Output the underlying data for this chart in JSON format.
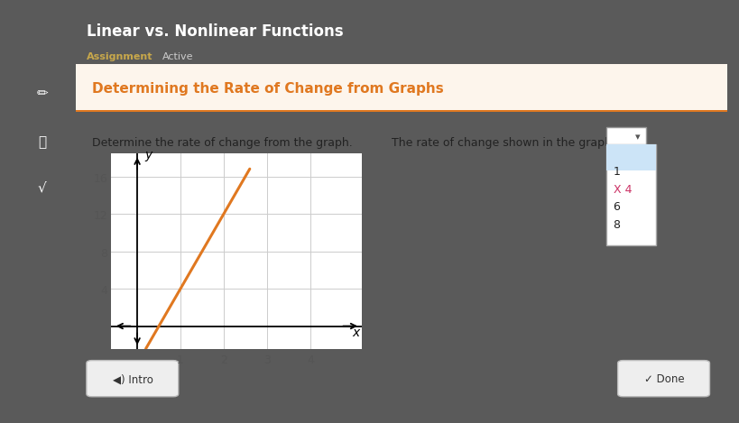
{
  "title": "Linear vs. Nonlinear Functions",
  "subtitle_left": "Assignment",
  "subtitle_right": "Active",
  "header_bg": "#3d3d3d",
  "header_title_color": "#ffffff",
  "header_assignment_color": "#c8a84b",
  "header_active_color": "#cccccc",
  "content_bg": "#f0f0f0",
  "inner_content_bg": "#ffffff",
  "section_title": "Determining the Rate of Change from Graphs",
  "section_title_color": "#e07820",
  "graph_instruction": "Determine the rate of change from the graph.",
  "graph_xlim": [
    -0.6,
    5.2
  ],
  "graph_ylim": [
    -2.5,
    18.5
  ],
  "graph_xticks": [
    1,
    2,
    3,
    4
  ],
  "graph_yticks": [
    4,
    8,
    12,
    16
  ],
  "line_color": "#e07820",
  "line_width": 2.2,
  "line_slope": 8,
  "line_intercept": -4,
  "question_text": "The rate of change shown in the graph is",
  "dropdown_options": [
    "1",
    "X 4",
    "6",
    "8"
  ],
  "dropdown_selected": "1",
  "dropdown_selected_bg": "#cce4f7",
  "dropdown_x4_color": "#cc3366",
  "intro_button": "Intro",
  "done_button": "Done",
  "outer_bg": "#5a5a5a",
  "left_panel_bg": "#4a4a4a",
  "grid_color": "#cccccc",
  "tick_color": "#555555"
}
